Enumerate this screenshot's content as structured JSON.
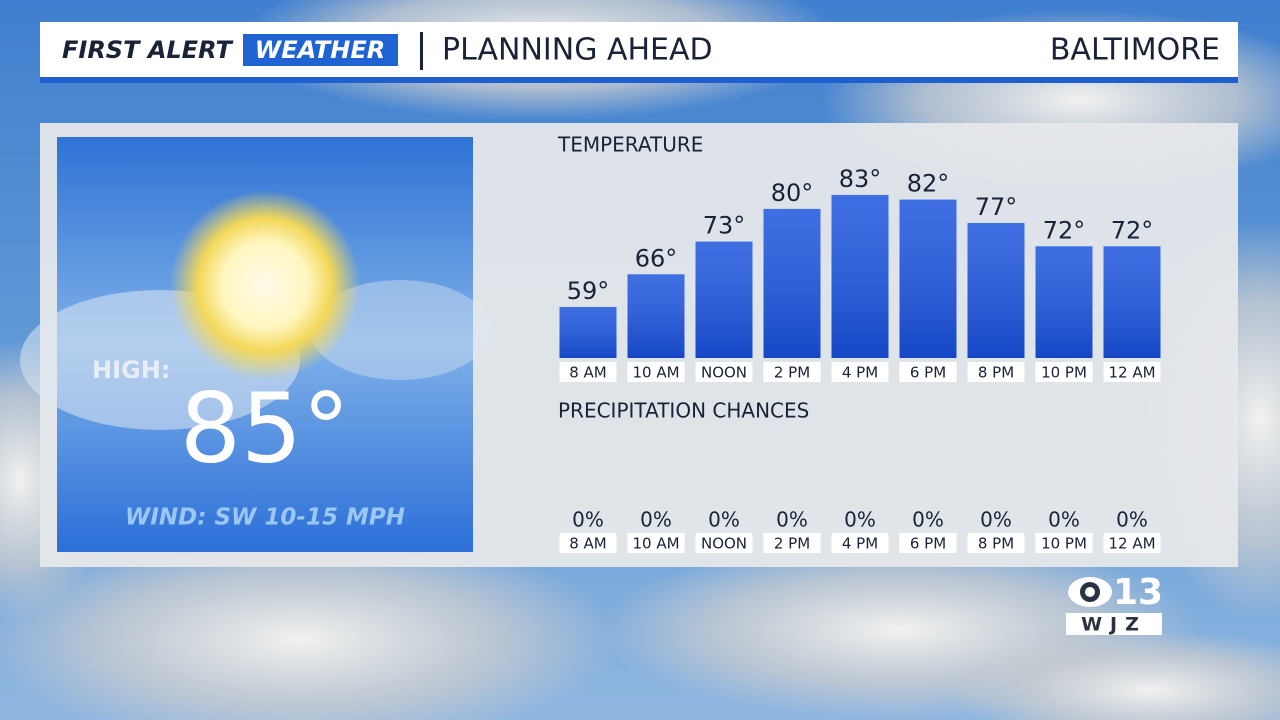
{
  "header": {
    "brand_first": "FIRST ALERT",
    "brand_weather": "WEATHER",
    "title": "PLANNING AHEAD",
    "location": "BALTIMORE"
  },
  "high": {
    "label": "HIGH:",
    "value": "85°",
    "wind": "WIND: SW 10-15 MPH"
  },
  "chart_data": {
    "type": "bar",
    "title": "TEMPERATURE",
    "categories": [
      "8 AM",
      "10 AM",
      "NOON",
      "2 PM",
      "4 PM",
      "6 PM",
      "8 PM",
      "10 PM",
      "12 AM"
    ],
    "values": [
      59,
      66,
      73,
      80,
      83,
      82,
      77,
      72,
      72
    ],
    "value_labels": [
      "59°",
      "66°",
      "73°",
      "80°",
      "83°",
      "82°",
      "77°",
      "72°",
      "72°"
    ],
    "color": "#1c55dc"
  },
  "precipitation": {
    "title": "PRECIPITATION CHANCES",
    "categories": [
      "8 AM",
      "10 AM",
      "NOON",
      "2 PM",
      "4 PM",
      "6 PM",
      "8 PM",
      "10 PM",
      "12 AM"
    ],
    "values": [
      "0%",
      "0%",
      "0%",
      "0%",
      "0%",
      "0%",
      "0%",
      "0%",
      "0%"
    ]
  },
  "logo": {
    "number": "13",
    "call_sign": "WJZ"
  }
}
